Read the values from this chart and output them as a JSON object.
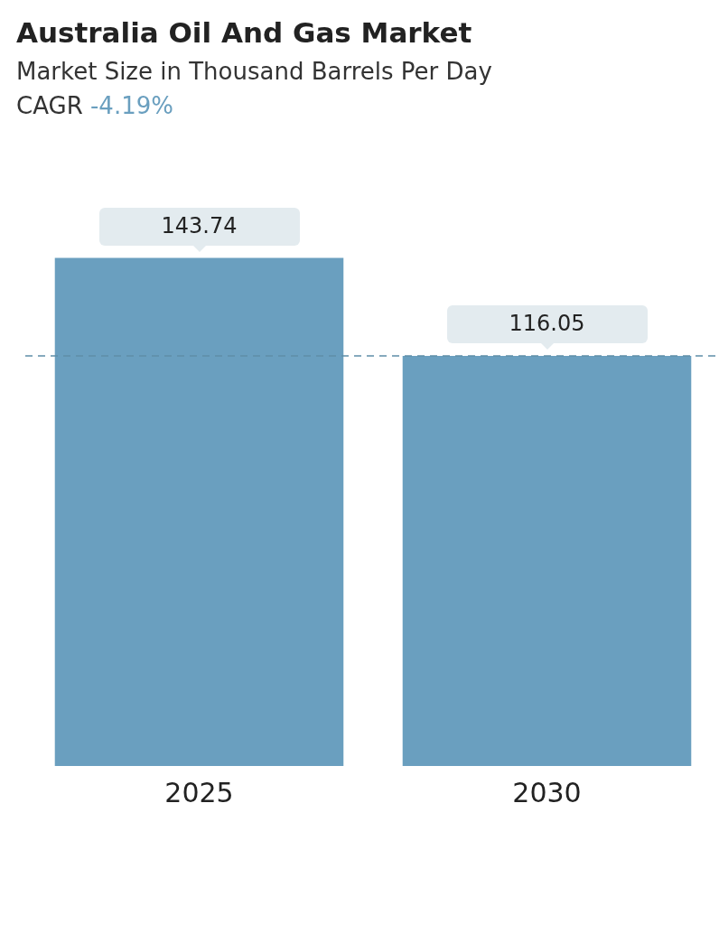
{
  "chart_data": {
    "type": "bar",
    "title": "Australia Oil And Gas Market",
    "subtitle": "Market Size in Thousand Barrels Per Day",
    "annotations": [
      "CAGR -4.19%"
    ],
    "categories": [
      "2025",
      "2030"
    ],
    "values": [
      143.74,
      116.05
    ],
    "color": "#6a9fbf",
    "data_labels": true,
    "grid": false,
    "legend": false,
    "tick_labels": "x",
    "ref_lines": [
      {
        "axis": "y",
        "value": 116.05,
        "color": "#5f8fa8",
        "line_style": "dashed"
      }
    ]
  }
}
